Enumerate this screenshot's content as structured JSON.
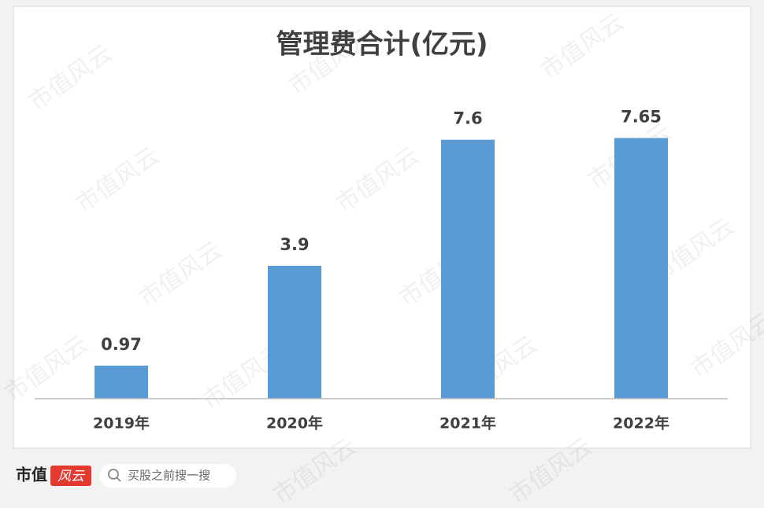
{
  "chart_data": {
    "type": "bar",
    "title": "管理费合计(亿元)",
    "categories": [
      "2019年",
      "2020年",
      "2021年",
      "2022年"
    ],
    "values": [
      0.97,
      3.9,
      7.6,
      7.65
    ],
    "color": "#5b9bd5",
    "ylim": [
      0,
      9
    ],
    "grid": false
  },
  "watermark": "市值风云",
  "footer": {
    "brand": "市值",
    "brand_mark": "风云",
    "search_placeholder": "买股之前搜一搜"
  }
}
